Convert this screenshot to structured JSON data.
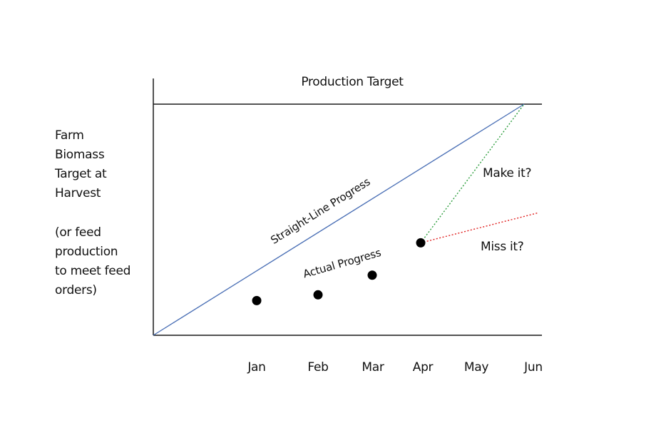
{
  "chart_data": {
    "type": "line",
    "title": "Production Target",
    "ylabel_lines": [
      "Farm",
      "Biomass",
      "Target at",
      "Harvest"
    ],
    "ylabel_note_lines": [
      "(or feed",
      "production",
      "to meet feed",
      "orders)"
    ],
    "x_categories": [
      "Jan",
      "Feb",
      "Mar",
      "Apr",
      "May",
      "Jun"
    ],
    "ylim": [
      0,
      100
    ],
    "target_value": 100,
    "series": [
      {
        "name": "Straight-Line Progress",
        "color": "#4a6fb5",
        "style": "solid",
        "points": [
          {
            "x": "Start",
            "y": 0
          },
          {
            "x": "Jun",
            "y": 100
          }
        ]
      },
      {
        "name": "Actual Progress",
        "color": "#000000",
        "style": "markers",
        "points": [
          {
            "x": "Jan",
            "y": 15
          },
          {
            "x": "Feb",
            "y": 17.5
          },
          {
            "x": "Mar",
            "y": 26
          },
          {
            "x": "Apr",
            "y": 40
          }
        ]
      },
      {
        "name": "Make it?",
        "color": "#2e9e3e",
        "style": "dotted",
        "points": [
          {
            "x": "Apr",
            "y": 40
          },
          {
            "x": "Jun",
            "y": 100
          }
        ]
      },
      {
        "name": "Miss it?",
        "color": "#e02020",
        "style": "dotted",
        "points": [
          {
            "x": "Apr",
            "y": 40
          },
          {
            "x": "Jun",
            "y": 53
          }
        ]
      }
    ]
  }
}
